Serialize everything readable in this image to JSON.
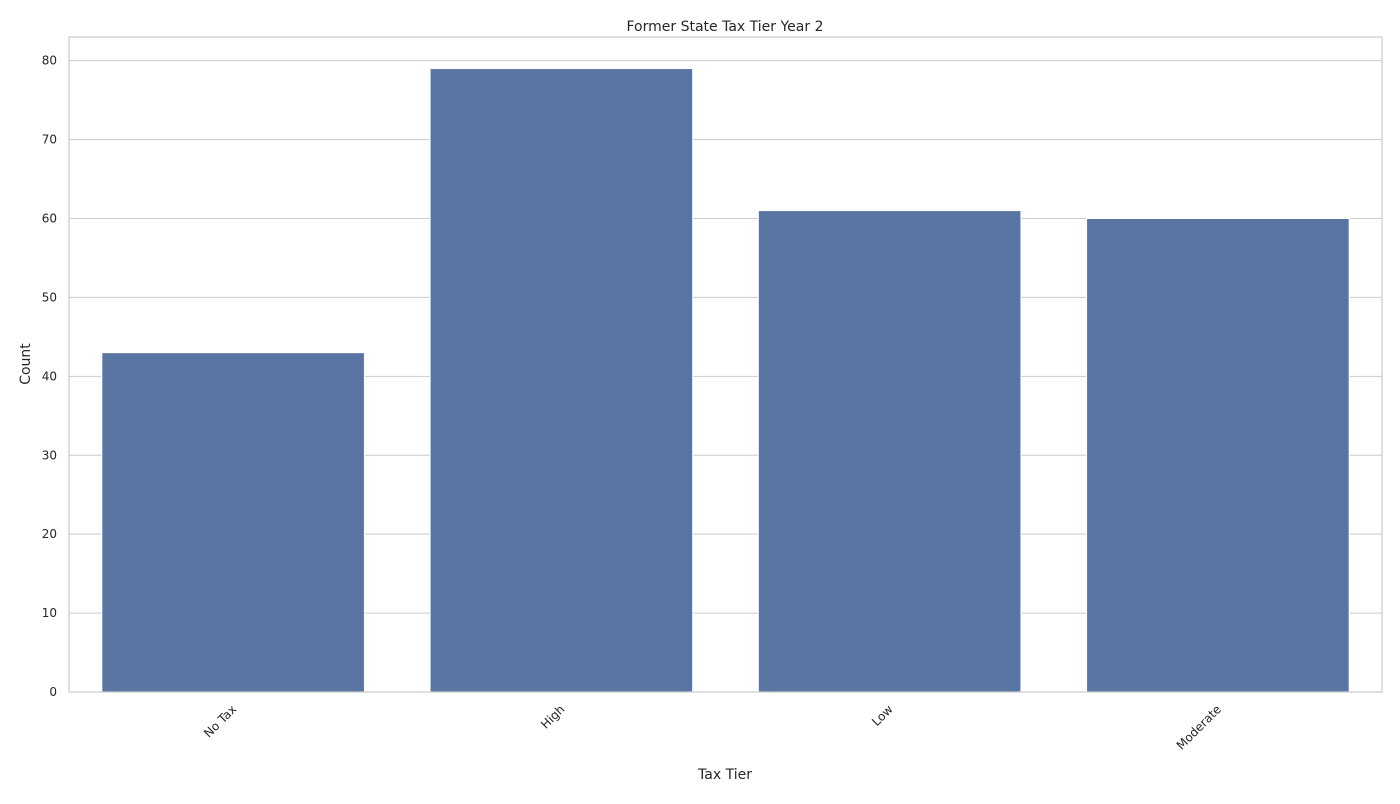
{
  "chart_data": {
    "type": "bar",
    "title": "Former State Tax Tier Year 2",
    "xlabel": "Tax Tier",
    "ylabel": "Count",
    "categories": [
      "No Tax",
      "High",
      "Low",
      "Moderate"
    ],
    "values": [
      43,
      79,
      61,
      60
    ],
    "ylim": [
      0,
      83
    ],
    "yticks": [
      0,
      10,
      20,
      30,
      40,
      50,
      60,
      70,
      80
    ],
    "grid": "horizontal",
    "bar_color": "#5975a4",
    "grid_color": "#cccccc",
    "axes_edge_color": "#cccccc",
    "xtick_rotation": 45
  }
}
